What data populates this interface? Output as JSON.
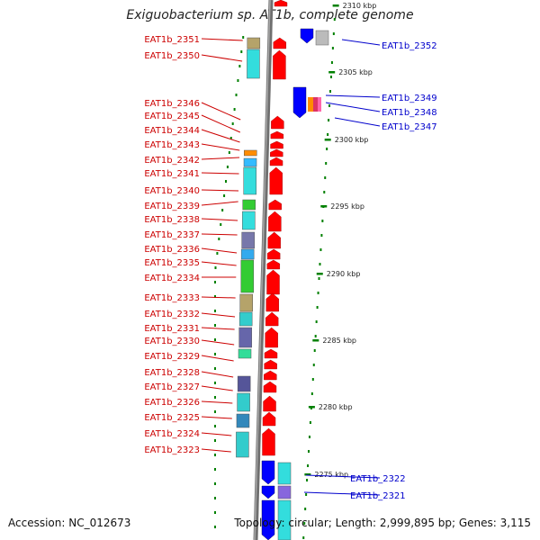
{
  "title": "Exiguobacterium sp. AT1b, complete genome",
  "footer": {
    "accession": "Accession: NC_012673",
    "topology": "Topology: circular; Length: 2,999,895 bp; Genes: 3,115"
  },
  "colors": {
    "plus_strand": "#ff0000",
    "minus_strand": "#0000ff",
    "backbone": "#808080",
    "tick": "#008000"
  },
  "kbp_ticks": [
    "2310 kbp",
    "2305 kbp",
    "2300 kbp",
    "2295 kbp",
    "2290 kbp",
    "2285 kbp",
    "2280 kbp",
    "2275 kbp"
  ],
  "genes_left": [
    "EAT1b_2351",
    "EAT1b_2350",
    "EAT1b_2346",
    "EAT1b_2345",
    "EAT1b_2344",
    "EAT1b_2343",
    "EAT1b_2342",
    "EAT1b_2341",
    "EAT1b_2340",
    "EAT1b_2339",
    "EAT1b_2338",
    "EAT1b_2337",
    "EAT1b_2336",
    "EAT1b_2335",
    "EAT1b_2334",
    "EAT1b_2333",
    "EAT1b_2332",
    "EAT1b_2331",
    "EAT1b_2330",
    "EAT1b_2329",
    "EAT1b_2328",
    "EAT1b_2327",
    "EAT1b_2326",
    "EAT1b_2325",
    "EAT1b_2324",
    "EAT1b_2323"
  ],
  "genes_right": [
    "EAT1b_2352",
    "EAT1b_2349",
    "EAT1b_2348",
    "EAT1b_2347",
    "EAT1b_2322",
    "EAT1b_2321"
  ]
}
